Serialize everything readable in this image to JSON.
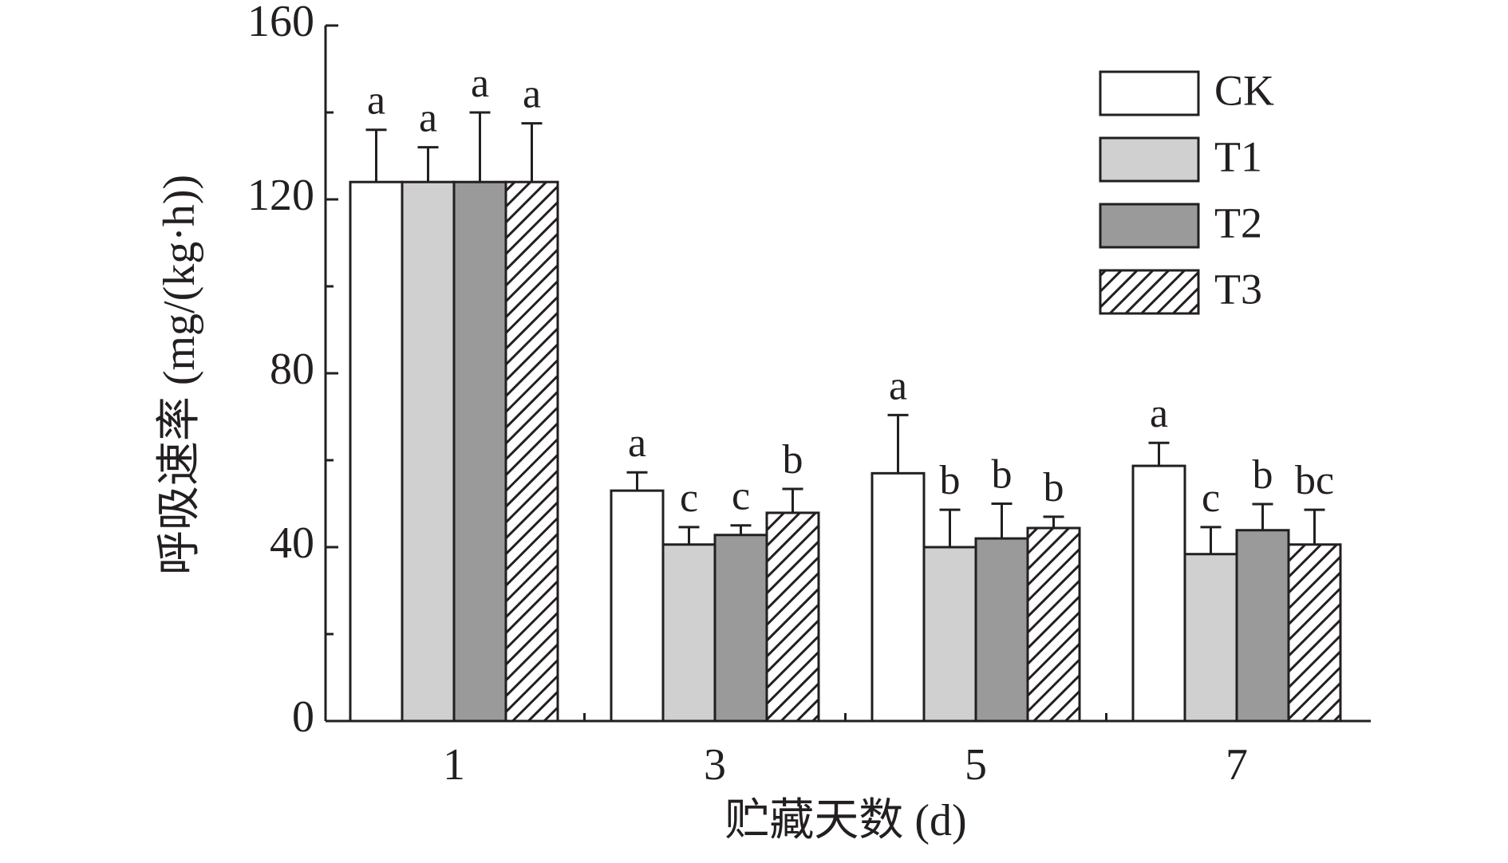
{
  "chart_data": {
    "type": "bar",
    "x_label": "贮藏天数 (d)",
    "y_label": "呼吸速率 (mg/(kg·h))",
    "categories": [
      "1",
      "3",
      "5",
      "7"
    ],
    "series": [
      {
        "name": "CK",
        "color": "#ffffff",
        "hatch": false,
        "values": [
          124,
          53,
          57,
          58.7
        ],
        "errors": [
          12,
          4.2,
          13.4,
          5.3
        ],
        "letters": [
          "a",
          "a",
          "a",
          "a"
        ]
      },
      {
        "name": "T1",
        "color": "#d0d0d0",
        "hatch": false,
        "values": [
          124,
          40.6,
          40,
          38.4
        ],
        "errors": [
          8,
          4,
          8.6,
          6.2
        ],
        "letters": [
          "a",
          "c",
          "b",
          "c"
        ]
      },
      {
        "name": "T2",
        "color": "#9a9a9a",
        "hatch": false,
        "values": [
          124,
          42.8,
          42,
          43.9
        ],
        "errors": [
          16,
          2.2,
          8,
          6
        ],
        "letters": [
          "a",
          "c",
          "b",
          "b"
        ]
      },
      {
        "name": "T3",
        "color": "#ffffff",
        "hatch": true,
        "values": [
          124,
          47.9,
          44.4,
          40.6
        ],
        "errors": [
          13.5,
          5.5,
          2.6,
          8
        ],
        "letters": [
          "a",
          "b",
          "b",
          "bc"
        ]
      }
    ],
    "ylim": [
      0,
      160
    ],
    "yticks": [
      0,
      40,
      80,
      120,
      160
    ],
    "yminorticks": [
      20,
      60,
      100,
      140
    ],
    "legend": "upper right"
  }
}
